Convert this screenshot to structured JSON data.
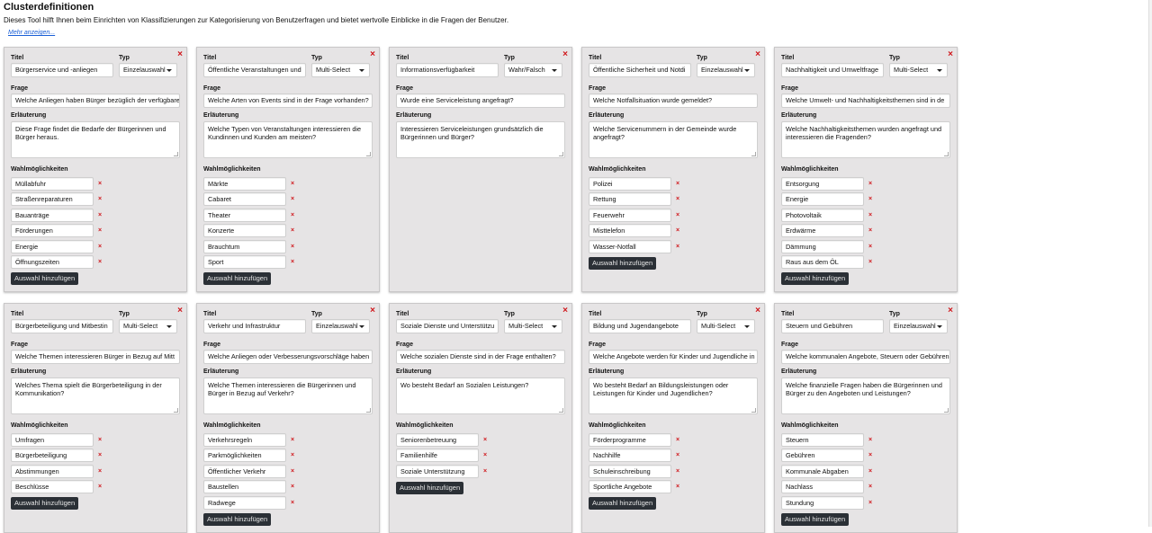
{
  "page": {
    "title": "Clusterdefinitionen",
    "description": "Dieses Tool hilft Ihnen beim Einrichten von Klassifizierungen zur Kategorisierung von Benutzerfragen und bietet wertvolle Einblicke in die Fragen der Benutzer.",
    "more_link": "Mehr anzeigen..."
  },
  "labels": {
    "title": "Titel",
    "type": "Typ",
    "question": "Frage",
    "explanation": "Erläuterung",
    "choices": "Wahlmöglichkeiten",
    "add_choice": "Auswahl hinzufügen",
    "remove": "×"
  },
  "clusters": [
    {
      "title": "Bürgerservice und -anliegen",
      "type": "Einzelauswahl",
      "question": "Welche Anliegen haben Bürger bezüglich der verfügbaren",
      "explanation": "Diese Frage findet die Bedarfe der Bürgerinnen und Bürger heraus.",
      "choices": [
        "Müllabfuhr",
        "Straßenreparaturen",
        "Bauanträge",
        "Förderungen",
        "Energie",
        "Öffnungszeiten"
      ]
    },
    {
      "title": "Öffentliche Veranstaltungen und",
      "type": "Multi-Select",
      "question": "Welche Arten von Events sind in der Frage vorhanden?",
      "explanation": "Welche Typen von Veranstaltungen interessieren die Kundinnen und Kunden am meisten?",
      "choices": [
        "Märkte",
        "Cabaret",
        "Theater",
        "Konzerte",
        "Brauchtum",
        "Sport"
      ]
    },
    {
      "title": "Informationsverfügbarkeit",
      "type": "Wahr/Falsch",
      "question": "Wurde eine Serviceleistung angefragt?",
      "explanation": "Interessieren  Serviceleistungen grundsätzlich die Bürgerinnen und Bürger?",
      "choices": []
    },
    {
      "title": "Öffentliche Sicherheit und Notdi",
      "type": "Einzelauswahl",
      "question": "Welche Notfallsituation wurde gemeldet?",
      "explanation": "Welche Servicenummern in der Gemeinde wurde angefragt?",
      "choices": [
        "Polizei",
        "Rettung",
        "Feuerwehr",
        "Misttelefon",
        "Wasser-Notfall"
      ]
    },
    {
      "title": "Nachhaltigkeit und Umweltfrage",
      "type": "Multi-Select",
      "question": "Welche Umwelt- und Nachhaltigkeitsthemen sind in de",
      "explanation": "Welche Nachhaltigkeitsthemen wurden angefragt und interessieren die Fragenden?",
      "choices": [
        "Entsorgung",
        "Energie",
        "Photovoltaik",
        "Erdwärme",
        "Dämmung",
        "Raus aus dem ÖL"
      ]
    },
    {
      "title": "Bürgerbeteiligung und Mitbestin",
      "type": "Multi-Select",
      "question": "Welche Themen interessieren Bürger in Bezug auf Mitt",
      "explanation": "Welches Thema spielt die Bürgerbeteiligung in der Kommunikation?",
      "choices": [
        "Umfragen",
        "Bürgerbeteiligung",
        "Abstimmungen",
        "Beschlüsse"
      ]
    },
    {
      "title": "Verkehr und Infrastruktur",
      "type": "Einzelauswahl",
      "question": "Welche Anliegen oder Verbesserungsvorschläge haben",
      "explanation": "Welche Themen interessieren die Bürgerinnen und Bürger in Bezug auf Verkehr?",
      "choices": [
        "Verkehrsregeln",
        "Parkmöglichkeiten",
        "Öffentlicher Verkehr",
        "Baustellen",
        "Radwege"
      ]
    },
    {
      "title": "Soziale Dienste und Unterstützu",
      "type": "Multi-Select",
      "question": "Welche sozialen Dienste sind in der Frage enthalten?",
      "explanation": "Wo besteht Bedarf an Sozialen Leistungen?",
      "choices": [
        "Seniorenbetreuung",
        "Familienhilfe",
        "Soziale Unterstützung"
      ]
    },
    {
      "title": "Bildung und Jugendangebote",
      "type": "Multi-Select",
      "question": "Welche Angebote werden für Kinder und Jugendliche in",
      "explanation": "Wo besteht Bedarf an Bildungsleistungen oder Leistungen für Kinder und Jugendlichen?",
      "choices": [
        "Förderprogramme",
        "Nachhilfe",
        "Schuleinschreibung",
        "Sportliche Angebote"
      ]
    },
    {
      "title": "Steuern und Gebühren",
      "type": "Einzelauswahl",
      "question": "Welche kommunalen Angebote, Steuern oder Gebühren",
      "explanation": "Welche finanzielle Fragen haben die Bürgerinnen und Bürger zu den Angeboten und Leistungen?",
      "choices": [
        "Steuern",
        "Gebühren",
        "Kommunale Abgaben",
        "Nachlass",
        "Stundung"
      ]
    }
  ],
  "colors": {
    "remove": "#d0161b",
    "button": "#2b3036",
    "card": "#e6e4e5",
    "link": "#1a5fd6"
  }
}
